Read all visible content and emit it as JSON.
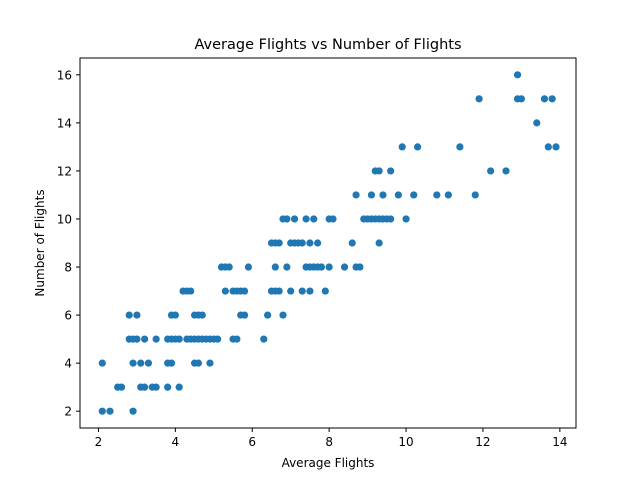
{
  "chart_data": {
    "type": "scatter",
    "title": "Average Flights vs Number of Flights",
    "xlabel": "Average Flights",
    "ylabel": "Number of Flights",
    "xlim": [
      1.52,
      14.42
    ],
    "ylim": [
      1.3,
      16.7
    ],
    "xticks": [
      2,
      4,
      6,
      8,
      10,
      12,
      14
    ],
    "yticks": [
      2,
      4,
      6,
      8,
      10,
      12,
      14,
      16
    ],
    "xtick_labels": [
      "2",
      "4",
      "6",
      "8",
      "10",
      "12",
      "14"
    ],
    "ytick_labels": [
      "2",
      "4",
      "6",
      "8",
      "10",
      "12",
      "14",
      "16"
    ],
    "grid": false,
    "marker_color": "#1f77b4",
    "points": [
      [
        2.1,
        4
      ],
      [
        2.1,
        2
      ],
      [
        2.3,
        2
      ],
      [
        2.5,
        3
      ],
      [
        2.6,
        3
      ],
      [
        2.8,
        6
      ],
      [
        2.8,
        5
      ],
      [
        2.9,
        5
      ],
      [
        2.9,
        4
      ],
      [
        2.9,
        2
      ],
      [
        3.0,
        6
      ],
      [
        3.0,
        5
      ],
      [
        3.1,
        4
      ],
      [
        3.1,
        3
      ],
      [
        3.2,
        5
      ],
      [
        3.2,
        3
      ],
      [
        3.3,
        4
      ],
      [
        3.4,
        3
      ],
      [
        3.5,
        3
      ],
      [
        3.5,
        5
      ],
      [
        3.8,
        5
      ],
      [
        3.8,
        4
      ],
      [
        3.8,
        3
      ],
      [
        3.9,
        4
      ],
      [
        3.9,
        5
      ],
      [
        3.9,
        6
      ],
      [
        4.0,
        6
      ],
      [
        4.0,
        5
      ],
      [
        4.1,
        3
      ],
      [
        4.1,
        5
      ],
      [
        4.2,
        7
      ],
      [
        4.3,
        7
      ],
      [
        4.3,
        5
      ],
      [
        4.4,
        7
      ],
      [
        4.4,
        5
      ],
      [
        4.5,
        6
      ],
      [
        4.5,
        5
      ],
      [
        4.5,
        4
      ],
      [
        4.6,
        6
      ],
      [
        4.6,
        5
      ],
      [
        4.6,
        4
      ],
      [
        4.7,
        6
      ],
      [
        4.7,
        5
      ],
      [
        4.8,
        5
      ],
      [
        4.9,
        5
      ],
      [
        4.9,
        4
      ],
      [
        5.0,
        5
      ],
      [
        5.1,
        5
      ],
      [
        5.2,
        8
      ],
      [
        5.3,
        8
      ],
      [
        5.3,
        7
      ],
      [
        5.4,
        8
      ],
      [
        5.5,
        7
      ],
      [
        5.5,
        5
      ],
      [
        5.6,
        7
      ],
      [
        5.6,
        5
      ],
      [
        5.7,
        7
      ],
      [
        5.7,
        6
      ],
      [
        5.8,
        7
      ],
      [
        5.8,
        6
      ],
      [
        5.9,
        8
      ],
      [
        6.3,
        5
      ],
      [
        6.4,
        6
      ],
      [
        6.5,
        9
      ],
      [
        6.5,
        7
      ],
      [
        6.6,
        9
      ],
      [
        6.6,
        8
      ],
      [
        6.6,
        7
      ],
      [
        6.7,
        9
      ],
      [
        6.7,
        7
      ],
      [
        6.8,
        10
      ],
      [
        6.8,
        6
      ],
      [
        6.9,
        10
      ],
      [
        6.9,
        8
      ],
      [
        7.0,
        9
      ],
      [
        7.0,
        7
      ],
      [
        7.1,
        10
      ],
      [
        7.1,
        9
      ],
      [
        7.2,
        9
      ],
      [
        7.3,
        9
      ],
      [
        7.3,
        7
      ],
      [
        7.4,
        10
      ],
      [
        7.4,
        8
      ],
      [
        7.5,
        9
      ],
      [
        7.5,
        8
      ],
      [
        7.5,
        7
      ],
      [
        7.6,
        10
      ],
      [
        7.6,
        8
      ],
      [
        7.7,
        9
      ],
      [
        7.7,
        8
      ],
      [
        7.8,
        8
      ],
      [
        7.9,
        7
      ],
      [
        8.0,
        10
      ],
      [
        8.0,
        8
      ],
      [
        8.1,
        10
      ],
      [
        8.4,
        8
      ],
      [
        8.6,
        9
      ],
      [
        8.7,
        11
      ],
      [
        8.7,
        8
      ],
      [
        8.8,
        8
      ],
      [
        8.9,
        10
      ],
      [
        9.0,
        10
      ],
      [
        9.1,
        10
      ],
      [
        9.1,
        11
      ],
      [
        9.2,
        10
      ],
      [
        9.2,
        12
      ],
      [
        9.3,
        9
      ],
      [
        9.3,
        10
      ],
      [
        9.3,
        12
      ],
      [
        9.4,
        10
      ],
      [
        9.4,
        11
      ],
      [
        9.5,
        10
      ],
      [
        9.6,
        10
      ],
      [
        9.6,
        12
      ],
      [
        9.8,
        11
      ],
      [
        9.9,
        13
      ],
      [
        10.0,
        10
      ],
      [
        10.2,
        11
      ],
      [
        10.3,
        13
      ],
      [
        10.8,
        11
      ],
      [
        11.1,
        11
      ],
      [
        11.4,
        13
      ],
      [
        11.8,
        11
      ],
      [
        11.9,
        15
      ],
      [
        12.2,
        12
      ],
      [
        12.6,
        12
      ],
      [
        12.9,
        16
      ],
      [
        12.9,
        15
      ],
      [
        13.0,
        15
      ],
      [
        13.4,
        14
      ],
      [
        13.6,
        15
      ],
      [
        13.7,
        13
      ],
      [
        13.8,
        15
      ],
      [
        13.9,
        13
      ]
    ]
  }
}
